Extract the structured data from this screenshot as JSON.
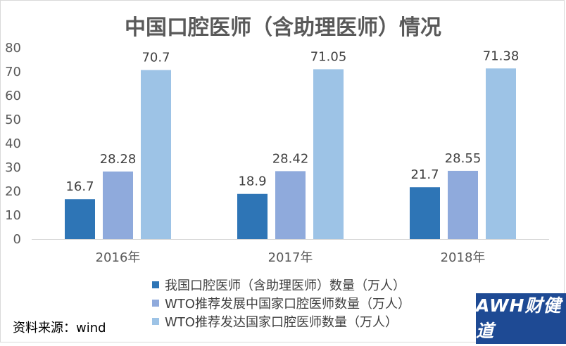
{
  "title": "中国口腔医师（含助理医师）情况",
  "source": "资料来源：wind",
  "logo": "AWH财健道",
  "chart_data": {
    "type": "bar",
    "categories": [
      "2016年",
      "2017年",
      "2018年"
    ],
    "ylim": [
      0,
      80
    ],
    "yticks": [
      0,
      10,
      20,
      30,
      40,
      50,
      60,
      70,
      80
    ],
    "grid": false,
    "legend_position": "bottom",
    "series": [
      {
        "name": "我国口腔医师（含助理医师）数量（万人）",
        "values": [
          16.7,
          18.9,
          21.7
        ],
        "labels": [
          "16.7",
          "18.9",
          "21.7"
        ],
        "color": "#2e75b6"
      },
      {
        "name": "WTO推荐发展中国家口腔医师数量（万人）",
        "values": [
          28.28,
          28.42,
          28.55
        ],
        "labels": [
          "28.28",
          "28.42",
          "28.55"
        ],
        "color": "#8faadc"
      },
      {
        "name": "WTO推荐发达国家口腔医师数量（万人）",
        "values": [
          70.7,
          71.05,
          71.38
        ],
        "labels": [
          "70.7",
          "71.05",
          "71.38"
        ],
        "color": "#9dc3e6"
      }
    ]
  }
}
